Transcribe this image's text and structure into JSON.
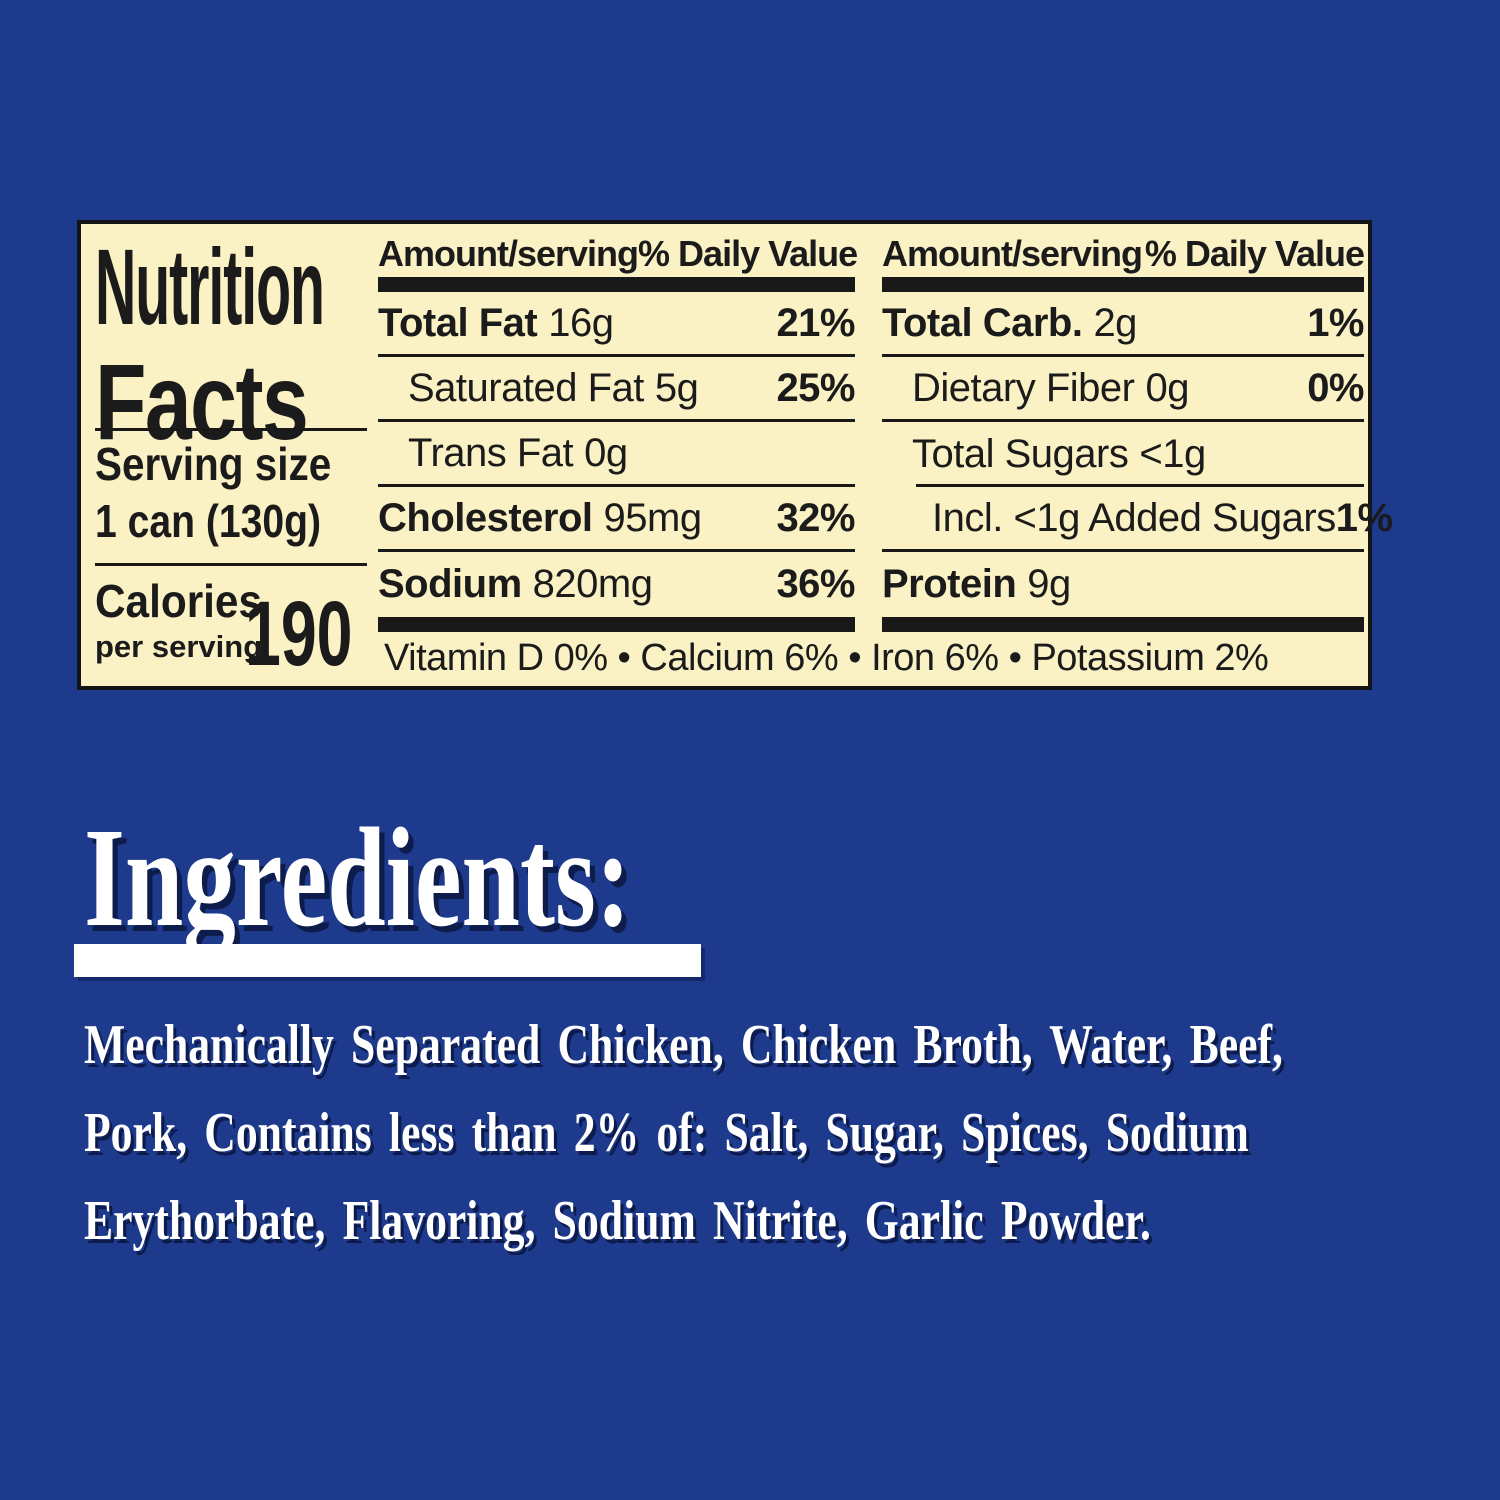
{
  "colors": {
    "background": "#1D3A8C",
    "label_background": "#FAF2C4",
    "label_text": "#191919",
    "ingredients_text": "#FFFFFF"
  },
  "panel": {
    "title_line1": "Nutrition",
    "title_line2": "Facts",
    "serving_size_label": "Serving size",
    "serving_size_value": "1 can (130g)",
    "calories_label": "Calories",
    "calories_sub": "per serving",
    "calories_value": "190",
    "col_headers": {
      "amount": "Amount/serving",
      "dv": "% Daily Value"
    },
    "left_rows": [
      {
        "name": "Total Fat",
        "amount": "16g",
        "dv": "21%"
      },
      {
        "name": "Saturated Fat",
        "amount": "5g",
        "dv": "25%"
      },
      {
        "name": "Trans Fat",
        "amount": "0g",
        "dv": ""
      },
      {
        "name": "Cholesterol",
        "amount": "95mg",
        "dv": "32%"
      },
      {
        "name": "Sodium",
        "amount": "820mg",
        "dv": "36%"
      }
    ],
    "right_rows": [
      {
        "name": "Total Carb.",
        "amount": "2g",
        "dv": "1%"
      },
      {
        "name": "Dietary Fiber",
        "amount": "0g",
        "dv": "0%"
      },
      {
        "name": "Total Sugars",
        "amount": "<1g",
        "dv": ""
      },
      {
        "name": "Incl. <1g Added Sugars",
        "amount": "",
        "dv": "1%"
      },
      {
        "name": "Protein",
        "amount": "9g",
        "dv": ""
      }
    ],
    "micronutrients": "Vitamin D 0% • Calcium 6% • Iron 6% • Potassium 2%"
  },
  "ingredients": {
    "heading": "Ingredients:",
    "lines": [
      "Mechanically Separated Chicken, Chicken Broth, Water, Beef,",
      "Pork, Contains less than 2% of: Salt, Sugar, Spices, Sodium",
      "Erythorbate, Flavoring, Sodium Nitrite, Garlic Powder."
    ]
  }
}
